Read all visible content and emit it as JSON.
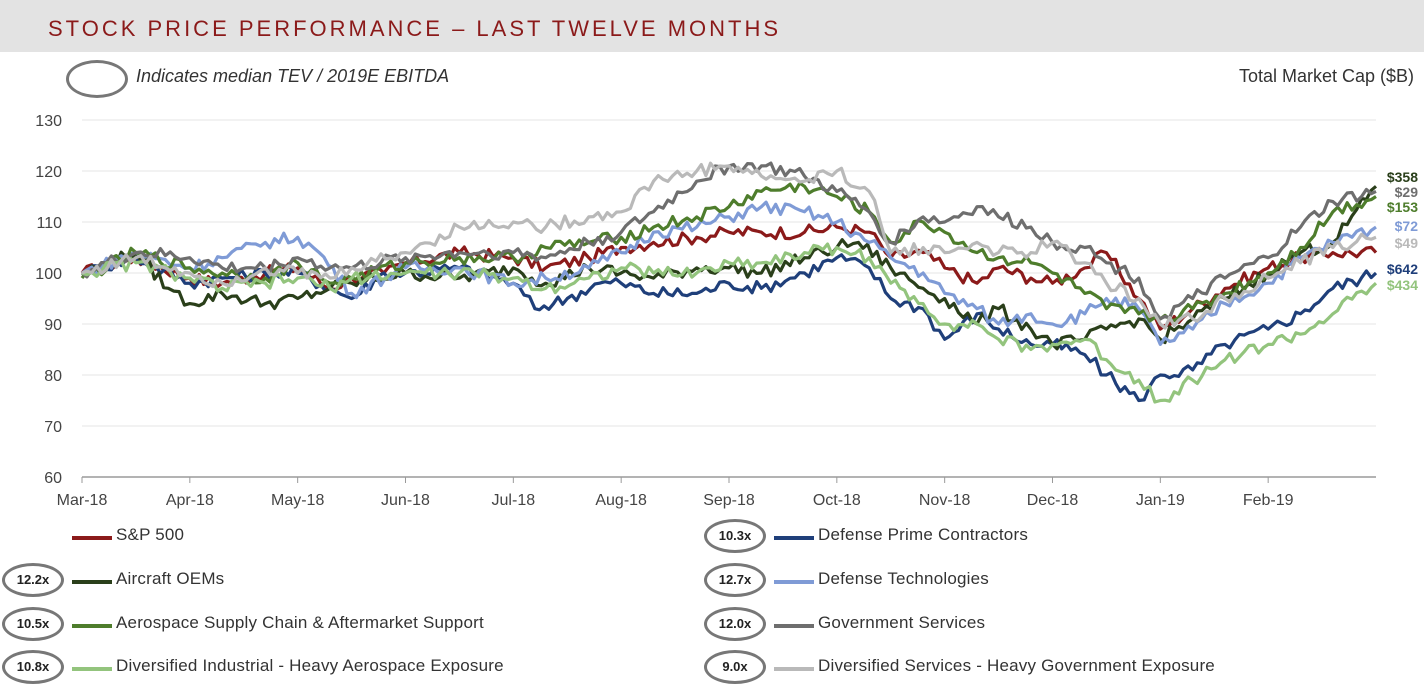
{
  "header": {
    "title": "STOCK PRICE PERFORMANCE – LAST TWELVE MONTHS"
  },
  "note": {
    "median_label": "Indicates median TEV / 2019E EBITDA"
  },
  "market_cap_header": "Total Market Cap ($B)",
  "chart_data": {
    "type": "line",
    "title": "Stock Price Performance – Last Twelve Months",
    "xlabel": "",
    "ylabel": "",
    "ylim": [
      60,
      130
    ],
    "yticks": [
      60,
      70,
      80,
      90,
      100,
      110,
      120,
      130
    ],
    "x_tick_labels": [
      "Mar-18",
      "Apr-18",
      "May-18",
      "Jun-18",
      "Jul-18",
      "Aug-18",
      "Sep-18",
      "Oct-18",
      "Nov-18",
      "Dec-18",
      "Jan-19",
      "Feb-19"
    ],
    "x_index_range": [
      0,
      12
    ],
    "series": [
      {
        "name": "S&P 500",
        "color": "#8b1a1a",
        "multiple": "",
        "market_cap": "",
        "x": [
          0,
          0.5,
          1,
          1.3,
          1.7,
          2,
          2.3,
          2.5,
          2.8,
          3,
          3.5,
          4,
          4.3,
          4.7,
          5,
          5.3,
          5.7,
          6,
          6.3,
          6.7,
          7,
          7.3,
          7.5,
          7.8,
          8,
          8.3,
          8.5,
          8.8,
          9,
          9.3,
          9.5,
          9.8,
          10,
          10.3,
          10.6,
          11,
          11.3,
          11.6,
          12
        ],
        "values": [
          100,
          103,
          99,
          98,
          100,
          101,
          97,
          99,
          100,
          102,
          104,
          103,
          101,
          103,
          105,
          106,
          107,
          108,
          108,
          108,
          109,
          108,
          103,
          104,
          101,
          98,
          101,
          99,
          98,
          101,
          104,
          95,
          89,
          93,
          97,
          101,
          103,
          104,
          104
        ]
      },
      {
        "name": "Defense Prime Contractors",
        "color": "#1f3f7a",
        "multiple": "10.3x",
        "market_cap": "$642",
        "x": [
          0,
          0.5,
          1,
          1.3,
          1.7,
          2,
          2.3,
          2.5,
          2.8,
          3,
          3.5,
          4,
          4.2,
          4.5,
          4.8,
          5,
          5.3,
          5.7,
          6,
          6.3,
          6.7,
          7,
          7.3,
          7.5,
          7.8,
          8,
          8.3,
          8.5,
          8.8,
          9,
          9.3,
          9.5,
          9.8,
          10,
          10.3,
          10.6,
          11,
          11.3,
          11.6,
          12
        ],
        "values": [
          100,
          103,
          98,
          99,
          100,
          100,
          97,
          95,
          100,
          100,
          101,
          98,
          93,
          95,
          98,
          98,
          96,
          96,
          98,
          97,
          100,
          103,
          101,
          95,
          93,
          87,
          92,
          89,
          86,
          86,
          84,
          80,
          75,
          80,
          81,
          86,
          89,
          92,
          97,
          100
        ]
      },
      {
        "name": "Aircraft OEMs",
        "color": "#2a3f1a",
        "multiple": "12.2x",
        "market_cap": "$358",
        "x": [
          0,
          0.5,
          0.8,
          1,
          1.3,
          1.7,
          2,
          2.3,
          2.5,
          3,
          3.5,
          4,
          4.3,
          4.7,
          5,
          5.3,
          5.7,
          6,
          6.3,
          6.7,
          7,
          7.2,
          7.5,
          7.8,
          8,
          8.3,
          8.5,
          8.8,
          9,
          9.3,
          9.5,
          9.8,
          10,
          10.3,
          10.6,
          11,
          11.3,
          11.6,
          12
        ],
        "values": [
          100,
          104,
          97,
          94,
          96,
          94,
          95,
          97,
          98,
          100,
          99,
          101,
          98,
          101,
          100,
          99,
          101,
          101,
          100,
          103,
          105,
          106,
          101,
          97,
          95,
          90,
          93,
          89,
          86,
          87,
          89,
          91,
          87,
          91,
          95,
          100,
          104,
          106,
          117
        ]
      },
      {
        "name": "Defense Technologies",
        "color": "#7f9bd6",
        "multiple": "12.7x",
        "market_cap": "$72",
        "x": [
          0,
          0.5,
          1,
          1.3,
          1.7,
          2,
          2.2,
          2.5,
          3,
          3.5,
          4,
          4.3,
          4.7,
          5,
          5.3,
          5.7,
          6,
          6.3,
          6.7,
          7,
          7.3,
          7.5,
          7.8,
          8,
          8.3,
          8.5,
          8.8,
          9,
          9.3,
          9.5,
          9.8,
          10,
          10.3,
          10.6,
          11,
          11.3,
          11.6,
          12
        ],
        "values": [
          100,
          104,
          101,
          103,
          106,
          107,
          104,
          96,
          101,
          101,
          98,
          99,
          101,
          104,
          108,
          109,
          111,
          113,
          112,
          110,
          106,
          103,
          100,
          96,
          93,
          90,
          92,
          90,
          92,
          95,
          93,
          86,
          89,
          94,
          98,
          103,
          106,
          109
        ]
      },
      {
        "name": "Aerospace Supply Chain & Aftermarket Support",
        "color": "#4e7d2c",
        "multiple": "10.5x",
        "market_cap": "$153",
        "x": [
          0,
          0.5,
          1,
          1.3,
          1.7,
          2,
          2.3,
          2.5,
          3,
          3.5,
          4,
          4.3,
          4.7,
          5,
          5.3,
          5.7,
          6,
          6.3,
          6.7,
          7,
          7.3,
          7.5,
          7.8,
          8,
          8.3,
          8.5,
          8.8,
          9,
          9.3,
          9.5,
          9.8,
          10,
          10.3,
          10.6,
          11,
          11.3,
          11.6,
          12
        ],
        "values": [
          99,
          104,
          101,
          100,
          99,
          102,
          98,
          99,
          102,
          103,
          103,
          105,
          106,
          107,
          109,
          111,
          113,
          116,
          117,
          115,
          112,
          106,
          110,
          108,
          104,
          103,
          102,
          100,
          96,
          93,
          92,
          91,
          93,
          96,
          100,
          105,
          112,
          115
        ]
      },
      {
        "name": "Government Services",
        "color": "#6e6e6e",
        "multiple": "12.0x",
        "market_cap": "$29",
        "x": [
          0,
          0.5,
          1,
          1.3,
          1.7,
          2,
          2.3,
          2.5,
          3,
          3.5,
          4,
          4.3,
          4.7,
          5,
          5.3,
          5.7,
          6,
          6.3,
          6.7,
          7,
          7.3,
          7.5,
          7.8,
          8,
          8.3,
          8.5,
          8.8,
          9,
          9.3,
          9.5,
          9.8,
          10,
          10.3,
          10.6,
          11,
          11.3,
          11.6,
          12
        ],
        "values": [
          100,
          104,
          103,
          101,
          101,
          103,
          101,
          101,
          103,
          104,
          104,
          103,
          106,
          108,
          112,
          118,
          121,
          121,
          119,
          116,
          112,
          106,
          111,
          110,
          113,
          111,
          109,
          106,
          105,
          102,
          99,
          91,
          95,
          99,
          103,
          109,
          114,
          116
        ]
      },
      {
        "name": "Diversified Industrial - Heavy Aerospace Exposure",
        "color": "#93c47d",
        "multiple": "10.8x",
        "market_cap": "$434",
        "x": [
          0,
          0.5,
          1,
          1.3,
          1.7,
          2,
          2.3,
          2.5,
          3,
          3.5,
          4,
          4.3,
          4.7,
          5,
          5.3,
          5.7,
          6,
          6.3,
          6.7,
          7,
          7.3,
          7.5,
          7.8,
          8,
          8.3,
          8.5,
          8.8,
          9,
          9.3,
          9.5,
          9.8,
          10,
          10.3,
          10.6,
          11,
          11.3,
          11.6,
          12
        ],
        "values": [
          100,
          102,
          99,
          97,
          98,
          99,
          97,
          99,
          100,
          100,
          99,
          97,
          99,
          101,
          100,
          100,
          102,
          102,
          104,
          105,
          103,
          98,
          94,
          90,
          90,
          87,
          85,
          86,
          87,
          83,
          79,
          75,
          79,
          83,
          86,
          88,
          92,
          98
        ]
      },
      {
        "name": "Diversified Services - Heavy Government Exposure",
        "color": "#b9b9b9",
        "multiple": "9.0x",
        "market_cap": "$49",
        "x": [
          0,
          0.5,
          1,
          1.3,
          1.7,
          2,
          2.3,
          2.5,
          3,
          3.5,
          4,
          4.3,
          4.7,
          5,
          5.3,
          5.7,
          6,
          6.3,
          6.7,
          7,
          7.3,
          7.5,
          7.8,
          8,
          8.3,
          8.5,
          8.8,
          9,
          9.3,
          9.5,
          9.8,
          10,
          10.3,
          10.6,
          11,
          11.3,
          11.6,
          12
        ],
        "values": [
          100,
          103,
          100,
          98,
          101,
          100,
          99,
          101,
          104,
          109,
          110,
          109,
          111,
          112,
          118,
          120,
          121,
          119,
          118,
          120,
          116,
          104,
          105,
          104,
          106,
          104,
          104,
          106,
          102,
          98,
          95,
          90,
          91,
          95,
          99,
          102,
          105,
          107
        ]
      }
    ]
  }
}
